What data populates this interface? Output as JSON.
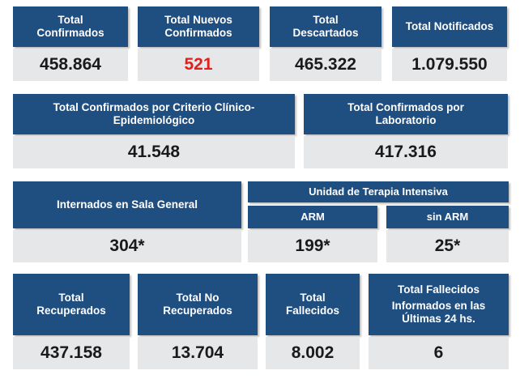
{
  "colors": {
    "header_bg": "#1f4e80",
    "value_bg": "#e6e7e9",
    "highlight": "#e1201b"
  },
  "row1": {
    "confirmados": {
      "label": "Total\nConfirmados",
      "value": "458.864"
    },
    "nuevos": {
      "label": "Total Nuevos\nConfirmados",
      "value": "521"
    },
    "descartados": {
      "label": "Total\nDescartados",
      "value": "465.322"
    },
    "notificados": {
      "label": "Total Notificados",
      "value": "1.079.550"
    }
  },
  "row2": {
    "clinico": {
      "label": "Total Confirmados por Criterio Clínico-\nEpidemiológico",
      "value": "41.548"
    },
    "laboratorio": {
      "label": "Total Confirmados por\nLaboratorio",
      "value": "417.316"
    }
  },
  "row3": {
    "sala_general": {
      "label": "Internados en Sala General",
      "value": "304*"
    },
    "uti": {
      "label": "Unidad de Terapia Intensiva"
    },
    "arm": {
      "label": "ARM",
      "value": "199*"
    },
    "sin_arm": {
      "label": "sin ARM",
      "value": "25*"
    }
  },
  "row4": {
    "recuperados": {
      "label": "Total\nRecuperados",
      "value": "437.158"
    },
    "no_recuperados": {
      "label": "Total No\nRecuperados",
      "value": "13.704"
    },
    "fallecidos": {
      "label": "Total\nFallecidos",
      "value": "8.002"
    },
    "fallecidos_24": {
      "label": "Total Fallecidos",
      "sublabel": "Informados en las\nÚltimas 24 hs.",
      "value": "6"
    }
  }
}
